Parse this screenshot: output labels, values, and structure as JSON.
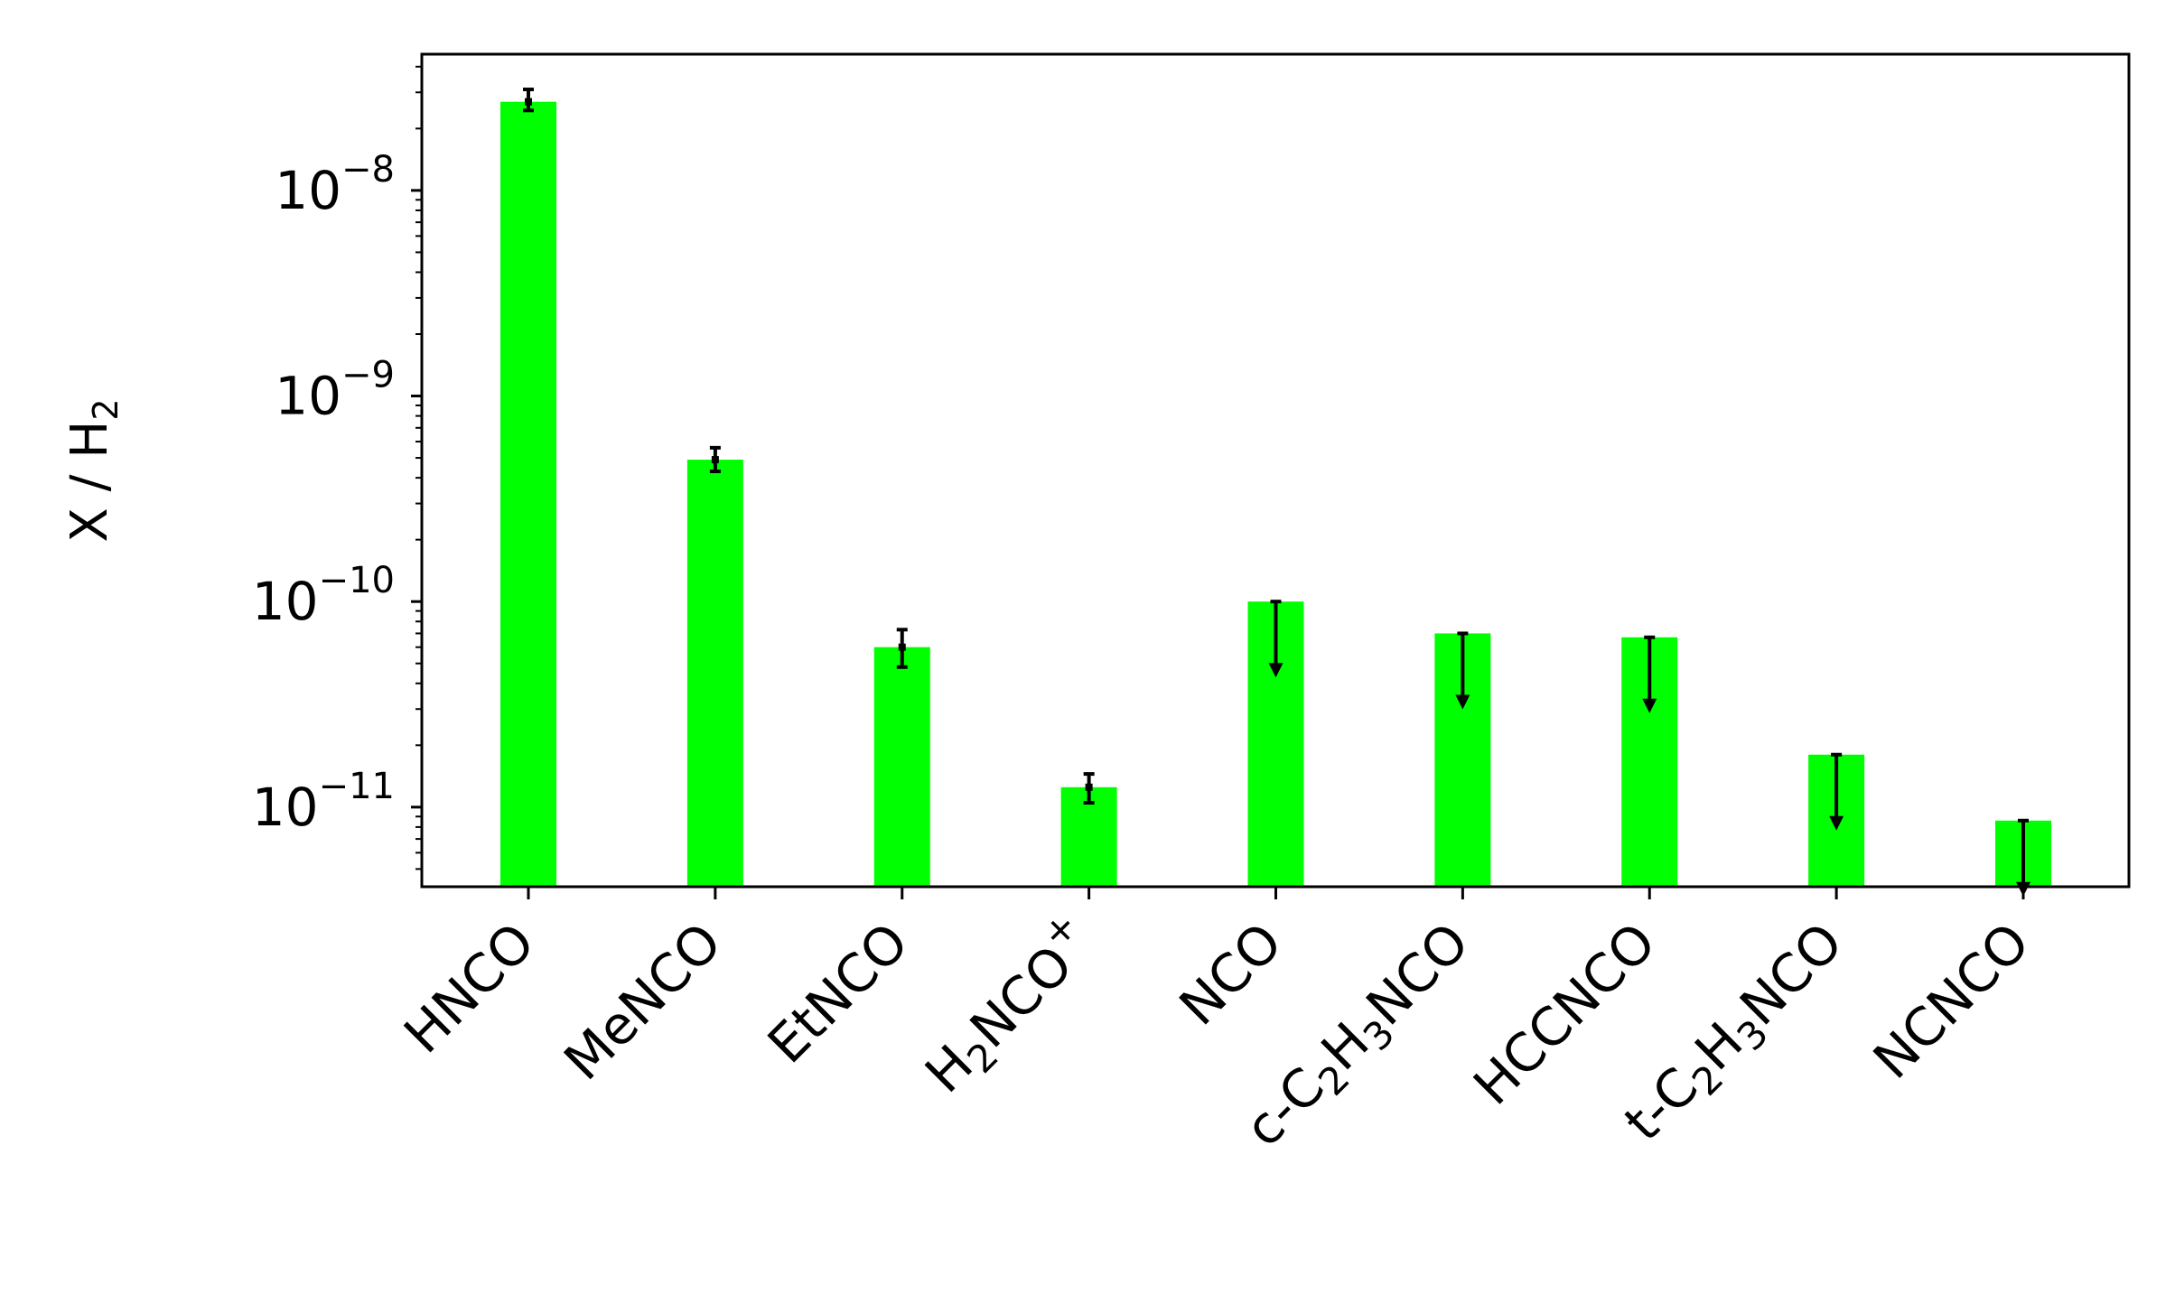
{
  "chart_data": {
    "type": "bar",
    "title": "",
    "xlabel": "",
    "ylabel": "X / H",
    "ylabel_sub": "2",
    "yscale": "log",
    "ylim": [
      4.1e-12,
      4.6e-08
    ],
    "grid": false,
    "legend": "none",
    "bar_color": "#00ff00",
    "errorbar_color": "#000000",
    "categories": [
      {
        "base": "HNCO",
        "parts": [
          {
            "t": "HNCO"
          }
        ]
      },
      {
        "base": "MeNCO",
        "parts": [
          {
            "t": "MeNCO"
          }
        ]
      },
      {
        "base": "EtNCO",
        "parts": [
          {
            "t": "EtNCO"
          }
        ]
      },
      {
        "base": "H2NCO+",
        "parts": [
          {
            "t": "H"
          },
          {
            "t": "2",
            "sub": true
          },
          {
            "t": "NCO"
          },
          {
            "t": "+",
            "sup": true
          }
        ]
      },
      {
        "base": "NCO",
        "parts": [
          {
            "t": "NCO"
          }
        ]
      },
      {
        "base": "c-C2H3NCO",
        "parts": [
          {
            "t": "c-C"
          },
          {
            "t": "2",
            "sub": true
          },
          {
            "t": "H"
          },
          {
            "t": "3",
            "sub": true
          },
          {
            "t": "NCO"
          }
        ]
      },
      {
        "base": "HCCNCO",
        "parts": [
          {
            "t": "HCCNCO"
          }
        ]
      },
      {
        "base": "t-C2H3NCO",
        "parts": [
          {
            "t": "t-C"
          },
          {
            "t": "2",
            "sub": true
          },
          {
            "t": "H"
          },
          {
            "t": "3",
            "sub": true
          },
          {
            "t": "NCO"
          }
        ]
      },
      {
        "base": "NCNCO",
        "parts": [
          {
            "t": "NCNCO"
          }
        ]
      }
    ],
    "values": [
      2.7e-08,
      4.9e-10,
      6e-11,
      1.25e-11,
      1e-10,
      7e-11,
      6.7e-11,
      1.8e-11,
      8.6e-12
    ],
    "errors": [
      {
        "kind": "bar",
        "low": 2.45e-08,
        "high": 3.1e-08
      },
      {
        "kind": "bar",
        "low": 4.3e-10,
        "high": 5.6e-10
      },
      {
        "kind": "bar",
        "low": 4.8e-11,
        "high": 7.3e-11
      },
      {
        "kind": "bar",
        "low": 1.05e-11,
        "high": 1.45e-11
      },
      {
        "kind": "upper_limit"
      },
      {
        "kind": "upper_limit"
      },
      {
        "kind": "upper_limit"
      },
      {
        "kind": "upper_limit"
      },
      {
        "kind": "upper_limit"
      }
    ],
    "yticks": [
      {
        "value": 1e-08,
        "base": "10",
        "exp": "−8"
      },
      {
        "value": 1e-09,
        "base": "10",
        "exp": "−9"
      },
      {
        "value": 1e-10,
        "base": "10",
        "exp": "−10"
      },
      {
        "value": 1e-11,
        "base": "10",
        "exp": "−11"
      }
    ]
  }
}
